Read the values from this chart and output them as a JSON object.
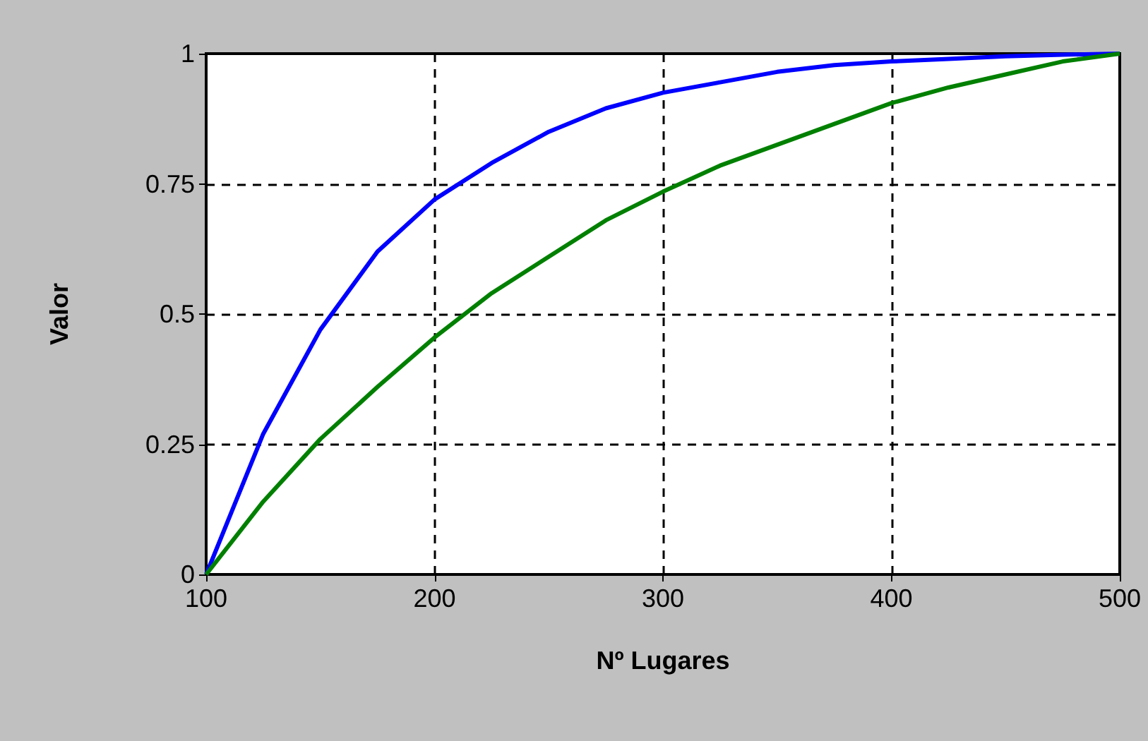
{
  "chart_data": {
    "type": "line",
    "xlabel": "Nº Lugares",
    "ylabel": "Valor",
    "x": [
      100,
      125,
      150,
      175,
      200,
      225,
      250,
      275,
      300,
      325,
      350,
      375,
      400,
      425,
      450,
      475,
      500
    ],
    "series": [
      {
        "color": "#0000ff",
        "values": [
          0,
          0.27,
          0.47,
          0.62,
          0.72,
          0.79,
          0.85,
          0.895,
          0.925,
          0.945,
          0.965,
          0.978,
          0.985,
          0.99,
          0.995,
          0.998,
          1
        ]
      },
      {
        "color": "#008000",
        "values": [
          0,
          0.14,
          0.26,
          0.36,
          0.455,
          0.54,
          0.61,
          0.68,
          0.735,
          0.785,
          0.825,
          0.865,
          0.905,
          0.935,
          0.96,
          0.985,
          1
        ]
      }
    ],
    "xlim": [
      100,
      500
    ],
    "xticks": [
      100,
      200,
      300,
      400,
      500
    ],
    "ylim": [
      0,
      1
    ],
    "yticks": [
      0,
      0.25,
      0.5,
      0.75,
      1
    ],
    "grid": true,
    "marker": "none",
    "line_style": "solid"
  }
}
